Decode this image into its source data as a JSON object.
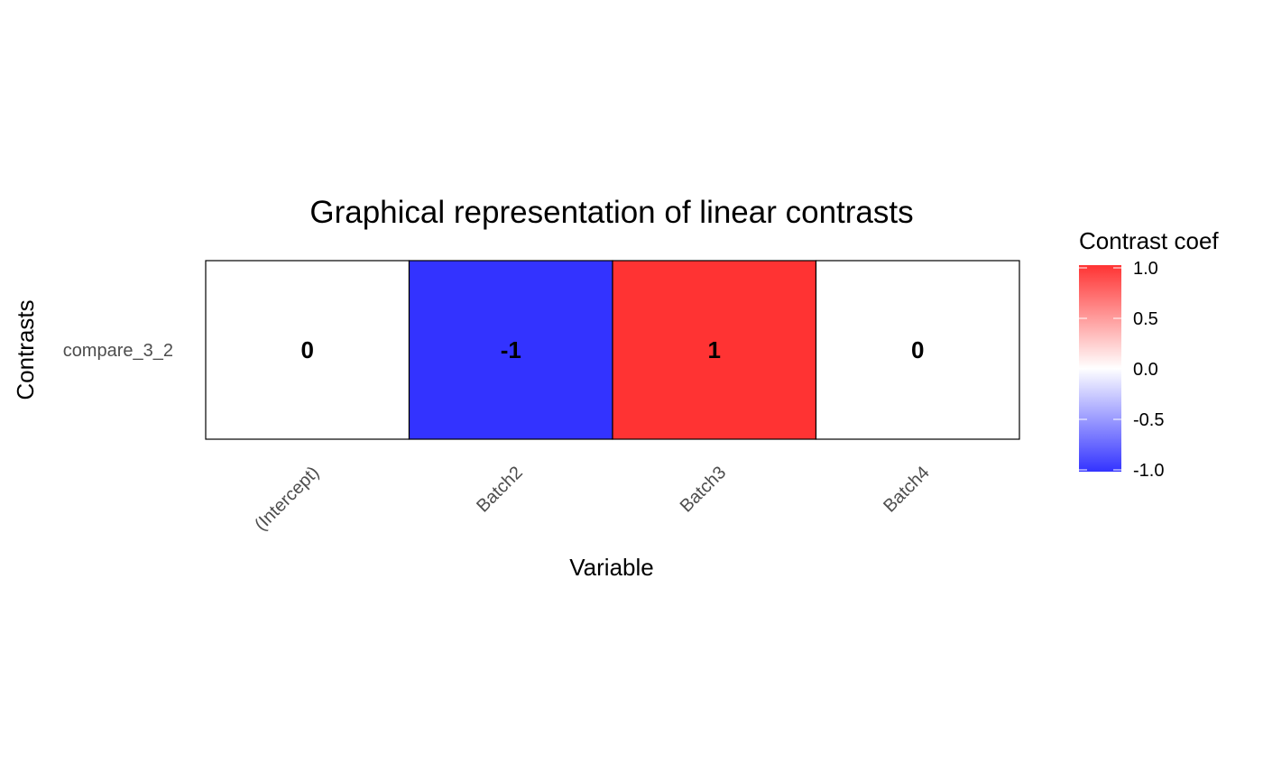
{
  "chart_data": {
    "type": "heatmap",
    "title": "Graphical representation of linear contrasts",
    "xlabel": "Variable",
    "ylabel": "Contrasts",
    "x_categories": [
      "(Intercept)",
      "Batch2",
      "Batch3",
      "Batch4"
    ],
    "y_categories": [
      "compare_3_2"
    ],
    "values": [
      [
        0,
        -1,
        1,
        0
      ]
    ],
    "cell_labels": [
      [
        "0",
        "-1",
        "1",
        "0"
      ]
    ],
    "legend": {
      "title": "Contrast coef",
      "ticks": [
        "1.0",
        "0.5",
        "0.0",
        "-0.5",
        "-1.0"
      ],
      "tick_values": [
        1.0,
        0.5,
        0.0,
        -0.5,
        -1.0
      ],
      "range": [
        -1,
        1
      ],
      "low_color": "#3333ff",
      "mid_color": "#ffffff",
      "high_color": "#ff3333",
      "placement": "right"
    },
    "cell_border_color": "#000000",
    "grid": false
  }
}
